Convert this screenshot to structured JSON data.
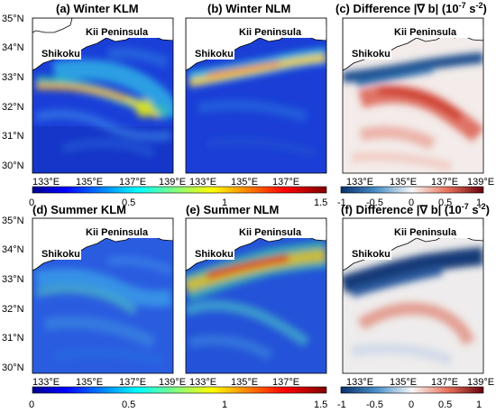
{
  "panels": [
    {
      "id": "a",
      "title": "(a) Winter KLM",
      "place_kii": "Kii Peninsula",
      "place_shikoku": "Shikoku"
    },
    {
      "id": "b",
      "title": "(b) Winter NLM",
      "place_kii": "Kii Peninsula",
      "place_shikoku": "Shikoku"
    },
    {
      "id": "c",
      "title": "(c) Difference |∇ b| (10",
      "title_sup": "-7",
      "title_unit": " s",
      "title_sup2": "-2",
      "title_end": ")",
      "place_kii": "Kii Peninsula",
      "place_shikoku": "Shikoku"
    },
    {
      "id": "d",
      "title": "(d) Summer KLM",
      "place_kii": "Kii Peninsula",
      "place_shikoku": "Shikoku"
    },
    {
      "id": "e",
      "title": "(e) Summer NLM",
      "place_kii": "Kii Peninsula",
      "place_shikoku": "Shikoku"
    },
    {
      "id": "f",
      "title": "(f) Difference |∇ b| (10",
      "title_sup": "-7",
      "title_unit": " s",
      "title_sup2": "-2",
      "title_end": ")",
      "place_kii": "Kii Peninsula",
      "place_shikoku": "Shikoku"
    }
  ],
  "y_ticks": [
    "35°N",
    "34°N",
    "33°N",
    "32°N",
    "31°N",
    "30°N"
  ],
  "x_ticks_first": [
    "133°E",
    "135°E",
    "137°E",
    "139°E"
  ],
  "x_ticks_other": [
    "133°E",
    "135°E",
    "137°E",
    "139°E"
  ],
  "colorbar_seq": {
    "ticks": [
      "0",
      "0.5",
      "1",
      "1.5"
    ],
    "range": [
      0,
      1.5
    ]
  },
  "colorbar_div": {
    "ticks": [
      "-1",
      "-0.5",
      "0",
      "0.5",
      "1"
    ],
    "range": [
      -1,
      1
    ]
  },
  "chart_data": {
    "type": "heatmap",
    "layout": "2 rows x 3 columns of maps with shared colorbars per row",
    "lon_range": [
      132.7,
      139.0
    ],
    "lat_range": [
      29.4,
      35.0
    ],
    "seq_colormap": "jet",
    "div_colormap": "blue-white-red",
    "panels": [
      {
        "title": "(a) Winter KLM",
        "scale": "0 to 1.5",
        "feature": "strong band along Kuroshio path south of Shikoku curving to about 31°N near 138°E"
      },
      {
        "title": "(b) Winter NLM",
        "scale": "0 to 1.5",
        "feature": "strong band near coast 33–33.5°N"
      },
      {
        "title": "(c) Difference |∇ b| (10^-7 s^-2)",
        "scale": "-1 to 1",
        "feature": "negative near coast, positive offshore"
      },
      {
        "title": "(d) Summer KLM",
        "scale": "0 to 1.5",
        "feature": "weak filaments"
      },
      {
        "title": "(e) Summer NLM",
        "scale": "0 to 1.5",
        "feature": "strong band near coast 33–34°N"
      },
      {
        "title": "(f) Difference |∇ b| (10^-7 s^-2)",
        "scale": "-1 to 1",
        "feature": "strong negative near coast, weak positive arc offshore"
      }
    ]
  }
}
